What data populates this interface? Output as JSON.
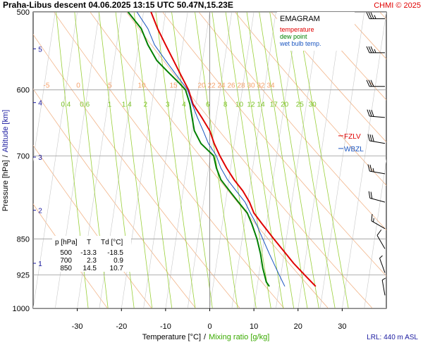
{
  "header": {
    "title": "Praha-Libus   descent   04.06.2025 13:15 UTC  50.47N,15.23E",
    "credit": "CHMI © 2025"
  },
  "legend": {
    "title": "EMAGRAM",
    "items": [
      {
        "label": "temperature",
        "color": "#e00000"
      },
      {
        "label": "dew point",
        "color": "#008000"
      },
      {
        "label": "wet bulb temp.",
        "color": "#1a55c0"
      }
    ]
  },
  "axes": {
    "ylabel_pressure": "Pressure [hPa]",
    "ylabel_sep": "/",
    "ylabel_altitude": "Altitude [km]",
    "xlabel_temperature": "Temperature [°C]",
    "xlabel_sep": "/",
    "xlabel_mixing": "Mixing ratio [g/kg]"
  },
  "levels": {
    "fzlv_label": "FZLV",
    "fzlv_pressure": 668,
    "wbzl_label": "WBZL",
    "wbzl_pressure": 688
  },
  "lrl": "LRL: 440 m ASL",
  "summary_table": {
    "headers": [
      "p [hPa]",
      "T",
      "Td [°C]"
    ],
    "rows": [
      [
        "500",
        "-13.3",
        "-18.5"
      ],
      [
        "700",
        "2.3",
        "0.9"
      ],
      [
        "850",
        "14.5",
        "10.7"
      ]
    ]
  },
  "chart_data": {
    "type": "line",
    "title": "Praha-Libus   descent   04.06.2025 13:15 UTC  50.47N,15.23E",
    "xlabel": "Temperature [°C]  /  Mixing ratio [g/kg]",
    "ylabel": "Pressure [hPa]  /  Altitude [km]",
    "xlim": [
      -40,
      40
    ],
    "ylim": [
      1000,
      500
    ],
    "y_scale": "log",
    "grid": true,
    "x_ticks": [
      -30,
      -20,
      -10,
      0,
      10,
      20,
      30
    ],
    "pressure_ticks": [
      500,
      600,
      700,
      850,
      925,
      1000
    ],
    "altitude_ticks": [
      {
        "label": "1",
        "pressure": 900
      },
      {
        "label": "2",
        "pressure": 795
      },
      {
        "label": "3",
        "pressure": 702
      },
      {
        "label": "4",
        "pressure": 618
      },
      {
        "label": "5",
        "pressure": 545
      }
    ],
    "temperature_label_row": {
      "pressure": 600,
      "values": [
        "-5",
        "0",
        "5",
        "10",
        "15",
        "20",
        "22",
        "24",
        "26",
        "28",
        "30",
        "32",
        "34"
      ]
    },
    "mixing_label_row": {
      "pressure": 620,
      "values": [
        "0.4",
        "0.6",
        "1",
        "1.4",
        "2",
        "3",
        "4",
        "6",
        "8",
        "10",
        "12",
        "14",
        "17",
        "20",
        "25",
        "30"
      ]
    },
    "series": [
      {
        "name": "temperature",
        "color": "#e00000",
        "points": [
          [
            500,
            -13.3
          ],
          [
            520,
            -11.8
          ],
          [
            540,
            -10.0
          ],
          [
            560,
            -8.2
          ],
          [
            580,
            -6.5
          ],
          [
            600,
            -4.8
          ],
          [
            620,
            -3.8
          ],
          [
            640,
            -1.8
          ],
          [
            660,
            0.0
          ],
          [
            680,
            1.0
          ],
          [
            700,
            2.3
          ],
          [
            720,
            3.8
          ],
          [
            740,
            5.5
          ],
          [
            760,
            7.5
          ],
          [
            780,
            9.0
          ],
          [
            800,
            10.0
          ],
          [
            820,
            11.8
          ],
          [
            850,
            14.5
          ],
          [
            875,
            16.8
          ],
          [
            900,
            19.0
          ],
          [
            925,
            21.5
          ],
          [
            950,
            24.0
          ]
        ]
      },
      {
        "name": "dew point",
        "color": "#008000",
        "points": [
          [
            500,
            -18.5
          ],
          [
            520,
            -15.5
          ],
          [
            540,
            -14.0
          ],
          [
            560,
            -12.0
          ],
          [
            575,
            -9.5
          ],
          [
            590,
            -7.0
          ],
          [
            600,
            -5.5
          ],
          [
            620,
            -4.5
          ],
          [
            640,
            -4.0
          ],
          [
            660,
            -3.5
          ],
          [
            680,
            -2.0
          ],
          [
            700,
            0.9
          ],
          [
            720,
            1.5
          ],
          [
            740,
            2.5
          ],
          [
            760,
            4.5
          ],
          [
            780,
            6.5
          ],
          [
            800,
            8.5
          ],
          [
            820,
            9.5
          ],
          [
            850,
            10.7
          ],
          [
            880,
            11.5
          ],
          [
            910,
            12.0
          ],
          [
            940,
            12.8
          ],
          [
            950,
            13.5
          ]
        ]
      },
      {
        "name": "wet bulb temp.",
        "color": "#1a55c0",
        "points": [
          [
            500,
            -16.5
          ],
          [
            520,
            -14.0
          ],
          [
            540,
            -12.5
          ],
          [
            560,
            -10.0
          ],
          [
            580,
            -7.5
          ],
          [
            600,
            -5.0
          ],
          [
            620,
            -4.0
          ],
          [
            640,
            -2.8
          ],
          [
            660,
            -1.5
          ],
          [
            680,
            -0.3
          ],
          [
            700,
            1.5
          ],
          [
            720,
            2.5
          ],
          [
            740,
            4.0
          ],
          [
            760,
            6.0
          ],
          [
            780,
            8.0
          ],
          [
            800,
            9.2
          ],
          [
            820,
            10.5
          ],
          [
            850,
            12.0
          ],
          [
            880,
            13.5
          ],
          [
            910,
            15.0
          ],
          [
            940,
            16.5
          ],
          [
            950,
            17.0
          ]
        ]
      }
    ],
    "wind_barbs": [
      {
        "pressure": 508,
        "dir_deg": 270,
        "speed_kt": 35
      },
      {
        "pressure": 550,
        "dir_deg": 270,
        "speed_kt": 35
      },
      {
        "pressure": 595,
        "dir_deg": 270,
        "speed_kt": 30
      },
      {
        "pressure": 640,
        "dir_deg": 275,
        "speed_kt": 30
      },
      {
        "pressure": 680,
        "dir_deg": 280,
        "speed_kt": 30
      },
      {
        "pressure": 730,
        "dir_deg": 280,
        "speed_kt": 25
      },
      {
        "pressure": 780,
        "dir_deg": 285,
        "speed_kt": 20
      },
      {
        "pressure": 830,
        "dir_deg": 300,
        "speed_kt": 15
      },
      {
        "pressure": 870,
        "dir_deg": 330,
        "speed_kt": 10
      },
      {
        "pressure": 920,
        "dir_deg": 340,
        "speed_kt": 5
      },
      {
        "pressure": 970,
        "dir_deg": 350,
        "speed_kt": 5
      }
    ]
  }
}
